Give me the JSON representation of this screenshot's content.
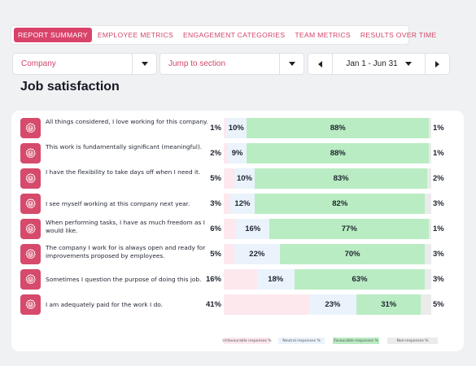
{
  "tabs": [
    {
      "label": "REPORT SUMMARY",
      "active": true
    },
    {
      "label": "EMPLOYEE METRICS",
      "active": false
    },
    {
      "label": "ENGAGEMENT CATEGORIES",
      "active": false
    },
    {
      "label": "TEAM METRICS",
      "active": false
    },
    {
      "label": "RESULTS OVER TIME",
      "active": false
    }
  ],
  "filters": {
    "company": "Company",
    "jump": "Jump to section",
    "date_range": "Jan 1 - Jun 31"
  },
  "section_title": "Job satisfaction",
  "colors": {
    "accent": "#d9436a",
    "unfavourable": "#fde8ee",
    "neutral": "#eaf3fc",
    "favourable": "#b9ecc2",
    "non_response": "#ebebeb"
  },
  "questions": [
    {
      "text": "All things considered, I love working for this company.",
      "unf": 1,
      "unf_label": "1%",
      "neu": 10,
      "neu_label": "10%",
      "fav": 88,
      "fav_label": "88%",
      "non": 1,
      "non_label": "1%"
    },
    {
      "text": "This work is fundamentally significant (meaningful).",
      "unf": 2,
      "unf_label": "2%",
      "neu": 9,
      "neu_label": "9%",
      "fav": 88,
      "fav_label": "88%",
      "non": 1,
      "non_label": "1%"
    },
    {
      "text": "I have the flexibility to take days off when I need it.",
      "unf": 5,
      "unf_label": "5%",
      "neu": 10,
      "neu_label": "10%",
      "fav": 83,
      "fav_label": "83%",
      "non": 2,
      "non_label": "2%"
    },
    {
      "text": "I see myself working at this company next year.",
      "unf": 3,
      "unf_label": "3%",
      "neu": 12,
      "neu_label": "12%",
      "fav": 82,
      "fav_label": "82%",
      "non": 3,
      "non_label": "3%"
    },
    {
      "text": "When performing tasks, I have as much freedom as I would like.",
      "unf": 6,
      "unf_label": "6%",
      "neu": 16,
      "neu_label": "16%",
      "fav": 77,
      "fav_label": "77%",
      "non": 1,
      "non_label": "1%"
    },
    {
      "text": "The company I work for is always open and ready for improvements proposed by employees.",
      "unf": 5,
      "unf_label": "5%",
      "neu": 22,
      "neu_label": "22%",
      "fav": 70,
      "fav_label": "70%",
      "non": 3,
      "non_label": "3%"
    },
    {
      "text": "Sometimes I question the purpose of doing this job.",
      "unf": 16,
      "unf_label": "16%",
      "neu": 18,
      "neu_label": "18%",
      "fav": 63,
      "fav_label": "63%",
      "non": 3,
      "non_label": "3%"
    },
    {
      "text": "I am adequately paid for the work I do.",
      "unf": 41,
      "unf_label": "41%",
      "neu": 23,
      "neu_label": "23%",
      "fav": 31,
      "fav_label": "31%",
      "non": 5,
      "non_label": "5%"
    }
  ],
  "legend": {
    "unfavourable": "Unfavourable responses %",
    "neutral": "Neutral responses %",
    "favourable": "Favourable responses %",
    "non_response": "Non-responses %"
  }
}
